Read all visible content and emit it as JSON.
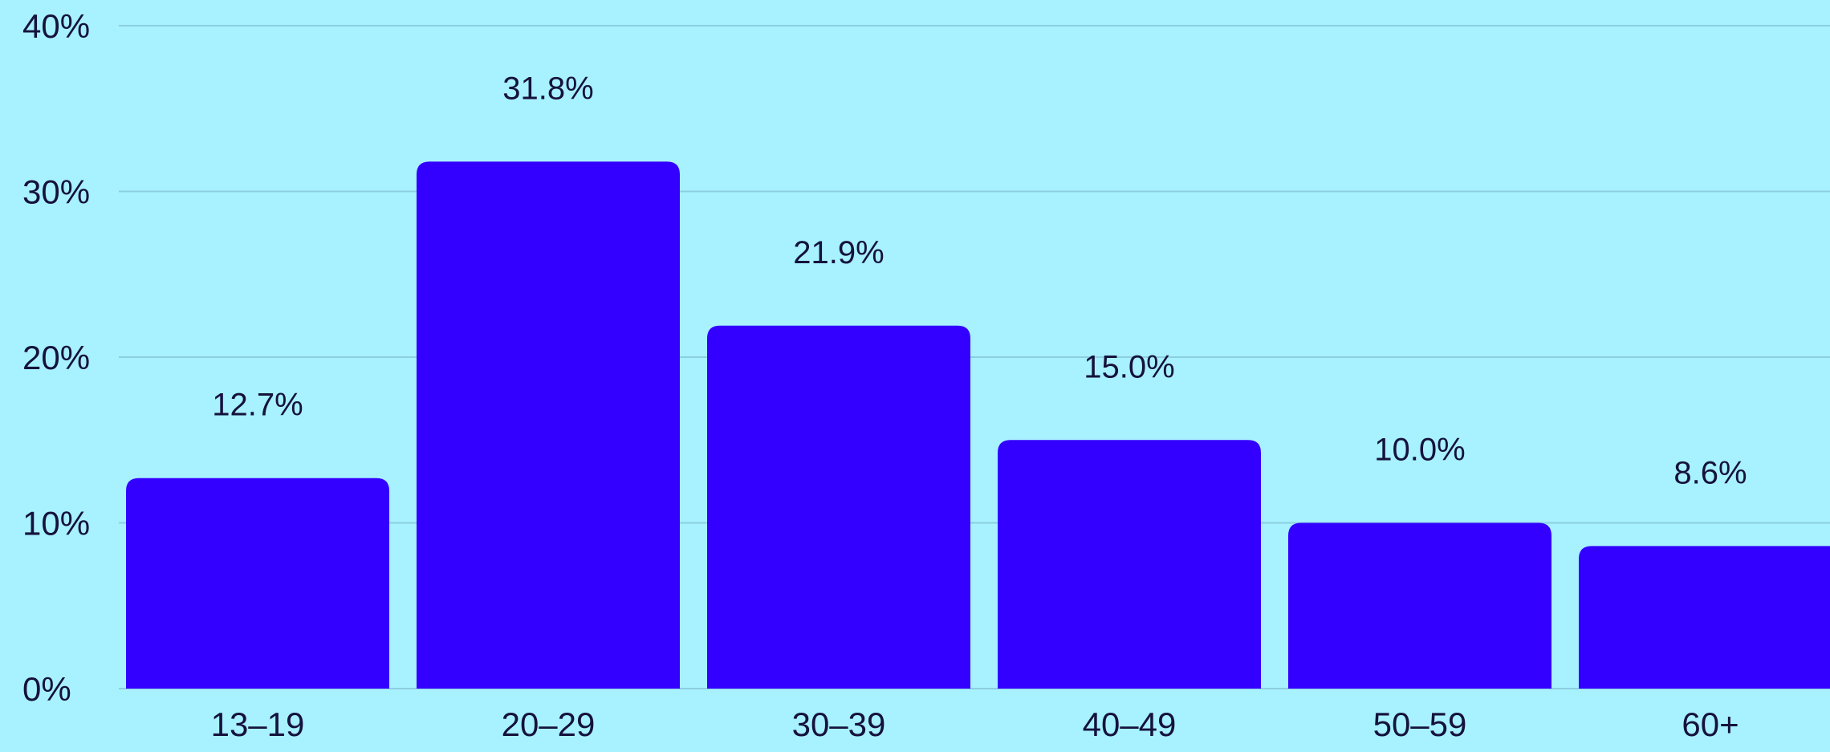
{
  "chart_data": {
    "type": "bar",
    "title": "",
    "xlabel": "",
    "ylabel": "",
    "categories": [
      "13–19",
      "20–29",
      "30–39",
      "40–49",
      "50–59",
      "60+"
    ],
    "values": [
      12.7,
      31.8,
      21.9,
      15.0,
      10.0,
      8.6
    ],
    "data_labels": [
      "12.7%",
      "31.8%",
      "21.9%",
      "15.0%",
      "10.0%",
      "8.6%"
    ],
    "ylim": [
      0,
      40
    ],
    "yticks": [
      0,
      10,
      20,
      30,
      40
    ],
    "ytick_labels": [
      "0%",
      "10%",
      "20%",
      "30%",
      "40%"
    ],
    "grid": true,
    "legend": "none",
    "colors": {
      "background": "#a8f1ff",
      "bar": "#3300ff",
      "gridline": "#8ccfe0",
      "text": "#15123d"
    }
  }
}
